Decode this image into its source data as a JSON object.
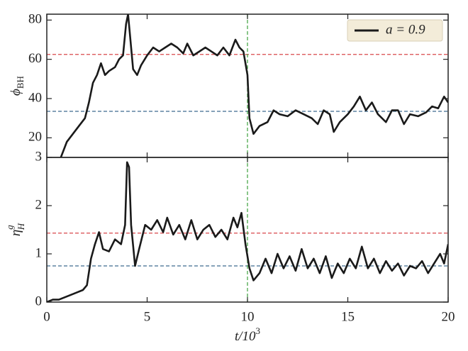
{
  "chart_data": [
    {
      "type": "line",
      "y_label": {
        "base": "ϕ",
        "sub": "BH"
      },
      "x": [
        0.7,
        1.0,
        1.3,
        1.6,
        1.9,
        2.1,
        2.3,
        2.5,
        2.7,
        2.9,
        3.1,
        3.4,
        3.6,
        3.8,
        3.95,
        4.05,
        4.15,
        4.3,
        4.5,
        4.7,
        5.0,
        5.3,
        5.6,
        5.9,
        6.2,
        6.5,
        6.8,
        7.0,
        7.3,
        7.6,
        7.9,
        8.2,
        8.5,
        8.8,
        9.1,
        9.4,
        9.6,
        9.8,
        10.0,
        10.1,
        10.3,
        10.6,
        11.0,
        11.3,
        11.6,
        12.0,
        12.4,
        12.8,
        13.2,
        13.5,
        13.8,
        14.1,
        14.3,
        14.6,
        15.0,
        15.3,
        15.6,
        15.9,
        16.2,
        16.5,
        16.9,
        17.2,
        17.5,
        17.8,
        18.1,
        18.5,
        18.9,
        19.2,
        19.5,
        19.8,
        20.0
      ],
      "series": [
        {
          "name": "a = 0.9",
          "color": "#1a1a1a",
          "values": [
            10,
            18,
            22,
            26,
            30,
            38,
            48,
            52,
            58,
            52,
            54,
            56,
            60,
            62,
            78,
            83,
            72,
            55,
            52,
            57,
            62,
            66,
            64,
            66,
            68,
            66,
            63,
            68,
            62,
            64,
            66,
            64,
            62,
            66,
            62,
            70,
            66,
            64,
            52,
            30,
            22,
            26,
            28,
            34,
            32,
            31,
            34,
            32,
            30,
            27,
            34,
            32,
            23,
            28,
            32,
            36,
            41,
            34,
            38,
            32,
            28,
            34,
            34,
            27,
            32,
            31,
            33,
            36,
            35,
            41,
            38
          ]
        }
      ],
      "hlines": [
        {
          "value": 62.5,
          "color": "#d9484b"
        },
        {
          "value": 33.5,
          "color": "#3e6b8f"
        }
      ],
      "vlines": [
        {
          "value": 10,
          "color": "#4aa84a"
        }
      ],
      "xlim": [
        0,
        20
      ],
      "xticks": [
        0,
        5,
        10,
        15,
        20
      ],
      "show_xticklabels": false,
      "ylim": [
        10,
        83
      ],
      "yticks": [
        20,
        40,
        60,
        80
      ],
      "legend": "upper right"
    },
    {
      "type": "line",
      "y_label": {
        "base": "η",
        "sub": "H",
        "sup": "g"
      },
      "x_label": {
        "base": "t/10",
        "sup": "3"
      },
      "x": [
        0,
        0.3,
        0.6,
        0.9,
        1.2,
        1.5,
        1.8,
        2.0,
        2.2,
        2.4,
        2.6,
        2.8,
        3.1,
        3.4,
        3.7,
        3.9,
        4.0,
        4.1,
        4.2,
        4.4,
        4.6,
        4.9,
        5.2,
        5.5,
        5.8,
        6.0,
        6.3,
        6.6,
        6.9,
        7.2,
        7.5,
        7.8,
        8.1,
        8.4,
        8.7,
        9.0,
        9.3,
        9.5,
        9.7,
        9.9,
        10.1,
        10.3,
        10.6,
        10.9,
        11.2,
        11.5,
        11.8,
        12.1,
        12.4,
        12.7,
        13.0,
        13.3,
        13.6,
        13.9,
        14.2,
        14.5,
        14.8,
        15.1,
        15.4,
        15.7,
        16.0,
        16.3,
        16.6,
        16.9,
        17.2,
        17.5,
        17.8,
        18.1,
        18.4,
        18.7,
        19.0,
        19.3,
        19.6,
        19.8,
        20.0
      ],
      "series": [
        {
          "color": "#1a1a1a",
          "values": [
            0.0,
            0.05,
            0.05,
            0.1,
            0.15,
            0.2,
            0.25,
            0.35,
            0.9,
            1.2,
            1.45,
            1.1,
            1.05,
            1.3,
            1.2,
            1.6,
            2.9,
            2.8,
            1.6,
            0.75,
            1.1,
            1.6,
            1.5,
            1.7,
            1.45,
            1.75,
            1.4,
            1.6,
            1.3,
            1.7,
            1.3,
            1.5,
            1.6,
            1.35,
            1.5,
            1.3,
            1.75,
            1.55,
            1.85,
            1.2,
            0.7,
            0.45,
            0.6,
            0.9,
            0.6,
            1.0,
            0.7,
            0.95,
            0.65,
            1.1,
            0.7,
            0.9,
            0.6,
            0.95,
            0.5,
            0.8,
            0.6,
            0.9,
            0.7,
            1.15,
            0.7,
            0.9,
            0.6,
            0.85,
            0.65,
            0.8,
            0.55,
            0.75,
            0.7,
            0.85,
            0.6,
            0.8,
            1.0,
            0.8,
            1.2
          ]
        }
      ],
      "hlines": [
        {
          "value": 1.43,
          "color": "#d9484b"
        },
        {
          "value": 0.75,
          "color": "#3e6b8f"
        }
      ],
      "vlines": [
        {
          "value": 10,
          "color": "#4aa84a"
        }
      ],
      "xlim": [
        0,
        20
      ],
      "xticks": [
        0,
        5,
        10,
        15,
        20
      ],
      "show_xticklabels": true,
      "ylim": [
        0,
        3
      ],
      "yticks": [
        0,
        1,
        2,
        3
      ]
    }
  ]
}
